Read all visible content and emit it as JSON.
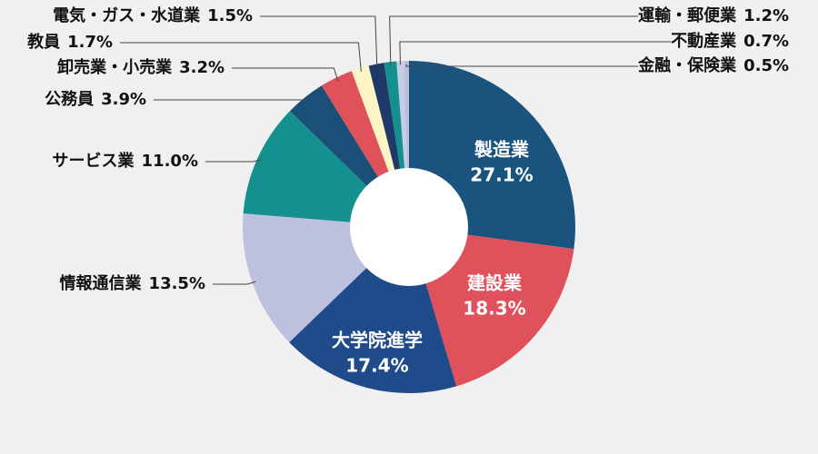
{
  "chart_data": {
    "type": "donut",
    "categories": [
      "製造業",
      "建設業",
      "大学院進学",
      "情報通信業",
      "サービス業",
      "公務員",
      "卸売業・小売業",
      "教員",
      "電気・ガス・水道業",
      "運輸・郵便業",
      "不動産業",
      "金融・保険業"
    ],
    "values": [
      27.1,
      18.3,
      17.4,
      13.5,
      11.0,
      3.9,
      3.2,
      1.7,
      1.5,
      1.2,
      0.7,
      0.5
    ],
    "value_labels": [
      "27.1%",
      "18.3%",
      "17.4%",
      "13.5%",
      "11.0%",
      "3.9%",
      "3.2%",
      "1.7%",
      "1.5%",
      "1.2%",
      "0.7%",
      "0.5%"
    ],
    "colors": [
      "#1b537f",
      "#df525c",
      "#1f4b8b",
      "#bdc0df",
      "#13908f",
      "#1c4f78",
      "#df525c",
      "#fdf5c6",
      "#1e3a68",
      "#14908e",
      "#c6cbe6",
      "#b8bfd8"
    ]
  }
}
